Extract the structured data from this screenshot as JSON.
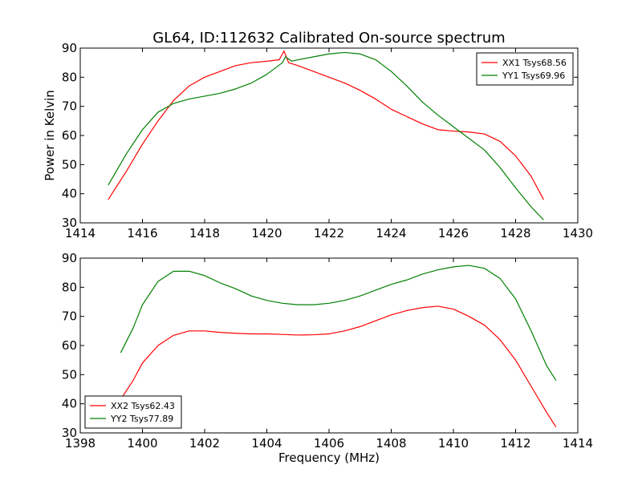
{
  "chart_data": [
    {
      "type": "line",
      "title": "GL64, ID:112632 Calibrated On-source spectrum",
      "xlabel": "",
      "ylabel": "Power in Kelvin",
      "xlim": [
        1414,
        1430
      ],
      "ylim": [
        30,
        90
      ],
      "xticks": [
        1414,
        1416,
        1418,
        1420,
        1422,
        1424,
        1426,
        1428,
        1430
      ],
      "yticks": [
        30,
        40,
        50,
        60,
        70,
        80,
        90
      ],
      "grid": false,
      "legend": "top-right",
      "series": [
        {
          "name": "XX1 Tsys68.56",
          "color": "#ff0000",
          "points": [
            [
              1414.9,
              38
            ],
            [
              1415.5,
              48
            ],
            [
              1416,
              57
            ],
            [
              1416.5,
              65
            ],
            [
              1417,
              72
            ],
            [
              1417.5,
              77
            ],
            [
              1418,
              80
            ],
            [
              1418.5,
              82
            ],
            [
              1419,
              84
            ],
            [
              1419.5,
              85
            ],
            [
              1420,
              85.5
            ],
            [
              1420.4,
              86
            ],
            [
              1420.55,
              89
            ],
            [
              1420.7,
              85
            ],
            [
              1421,
              84
            ],
            [
              1421.5,
              82
            ],
            [
              1422,
              80
            ],
            [
              1422.5,
              78
            ],
            [
              1423,
              75.5
            ],
            [
              1423.5,
              72.5
            ],
            [
              1424,
              69
            ],
            [
              1424.5,
              66.5
            ],
            [
              1425,
              64
            ],
            [
              1425.5,
              62
            ],
            [
              1426,
              61.5
            ],
            [
              1426.5,
              61.2
            ],
            [
              1427,
              60.5
            ],
            [
              1427.5,
              58
            ],
            [
              1428,
              53
            ],
            [
              1428.5,
              46
            ],
            [
              1428.9,
              38
            ]
          ]
        },
        {
          "name": "YY1 Tsys69.96",
          "color": "#008000",
          "points": [
            [
              1414.9,
              43
            ],
            [
              1415.5,
              54
            ],
            [
              1416,
              62
            ],
            [
              1416.5,
              68
            ],
            [
              1417,
              71
            ],
            [
              1417.5,
              72.5
            ],
            [
              1418,
              73.5
            ],
            [
              1418.5,
              74.5
            ],
            [
              1419,
              76
            ],
            [
              1419.5,
              78
            ],
            [
              1420,
              81
            ],
            [
              1420.5,
              85
            ],
            [
              1420.6,
              87
            ],
            [
              1420.8,
              85.5
            ],
            [
              1421,
              86
            ],
            [
              1421.5,
              87
            ],
            [
              1422,
              88
            ],
            [
              1422.5,
              88.5
            ],
            [
              1423,
              88
            ],
            [
              1423.5,
              86
            ],
            [
              1424,
              82
            ],
            [
              1424.5,
              77
            ],
            [
              1425,
              71.5
            ],
            [
              1425.5,
              67
            ],
            [
              1426,
              63
            ],
            [
              1426.5,
              59
            ],
            [
              1427,
              55
            ],
            [
              1427.5,
              49
            ],
            [
              1428,
              42
            ],
            [
              1428.5,
              35.5
            ],
            [
              1428.9,
              31
            ]
          ]
        }
      ]
    },
    {
      "type": "line",
      "title": "",
      "xlabel": "Frequency (MHz)",
      "ylabel": "",
      "xlim": [
        1398,
        1414
      ],
      "ylim": [
        30,
        90
      ],
      "xticks": [
        1398,
        1400,
        1402,
        1404,
        1406,
        1408,
        1410,
        1412,
        1414
      ],
      "yticks": [
        30,
        40,
        50,
        60,
        70,
        80,
        90
      ],
      "grid": false,
      "legend": "bottom-left",
      "series": [
        {
          "name": "XX2 Tsys62.43",
          "color": "#ff0000",
          "points": [
            [
              1399.3,
              41.5
            ],
            [
              1399.7,
              48
            ],
            [
              1400,
              54
            ],
            [
              1400.5,
              60
            ],
            [
              1401,
              63.5
            ],
            [
              1401.5,
              65
            ],
            [
              1402,
              65
            ],
            [
              1402.5,
              64.5
            ],
            [
              1403,
              64.2
            ],
            [
              1403.5,
              64
            ],
            [
              1404,
              64
            ],
            [
              1404.5,
              63.8
            ],
            [
              1405,
              63.6
            ],
            [
              1405.5,
              63.7
            ],
            [
              1406,
              64
            ],
            [
              1406.5,
              65
            ],
            [
              1407,
              66.5
            ],
            [
              1407.5,
              68.5
            ],
            [
              1408,
              70.5
            ],
            [
              1408.5,
              72
            ],
            [
              1409,
              73
            ],
            [
              1409.5,
              73.5
            ],
            [
              1410,
              72.5
            ],
            [
              1410.5,
              70
            ],
            [
              1411,
              67
            ],
            [
              1411.5,
              62
            ],
            [
              1412,
              55
            ],
            [
              1412.5,
              46
            ],
            [
              1413,
              37
            ],
            [
              1413.3,
              32
            ]
          ]
        },
        {
          "name": "YY2 Tsys77.89",
          "color": "#008000",
          "points": [
            [
              1399.3,
              57.5
            ],
            [
              1399.7,
              66
            ],
            [
              1400,
              74
            ],
            [
              1400.5,
              82
            ],
            [
              1401,
              85.5
            ],
            [
              1401.5,
              85.5
            ],
            [
              1402,
              84
            ],
            [
              1402.5,
              81.5
            ],
            [
              1403,
              79.5
            ],
            [
              1403.5,
              77
            ],
            [
              1404,
              75.5
            ],
            [
              1404.5,
              74.5
            ],
            [
              1405,
              74
            ],
            [
              1405.5,
              74
            ],
            [
              1406,
              74.5
            ],
            [
              1406.5,
              75.5
            ],
            [
              1407,
              77
            ],
            [
              1407.5,
              79
            ],
            [
              1408,
              81
            ],
            [
              1408.5,
              82.5
            ],
            [
              1409,
              84.5
            ],
            [
              1409.5,
              86
            ],
            [
              1410,
              87
            ],
            [
              1410.5,
              87.5
            ],
            [
              1411,
              86.5
            ],
            [
              1411.5,
              83
            ],
            [
              1412,
              76
            ],
            [
              1412.5,
              65
            ],
            [
              1413,
              53
            ],
            [
              1413.3,
              48
            ]
          ]
        }
      ]
    }
  ]
}
